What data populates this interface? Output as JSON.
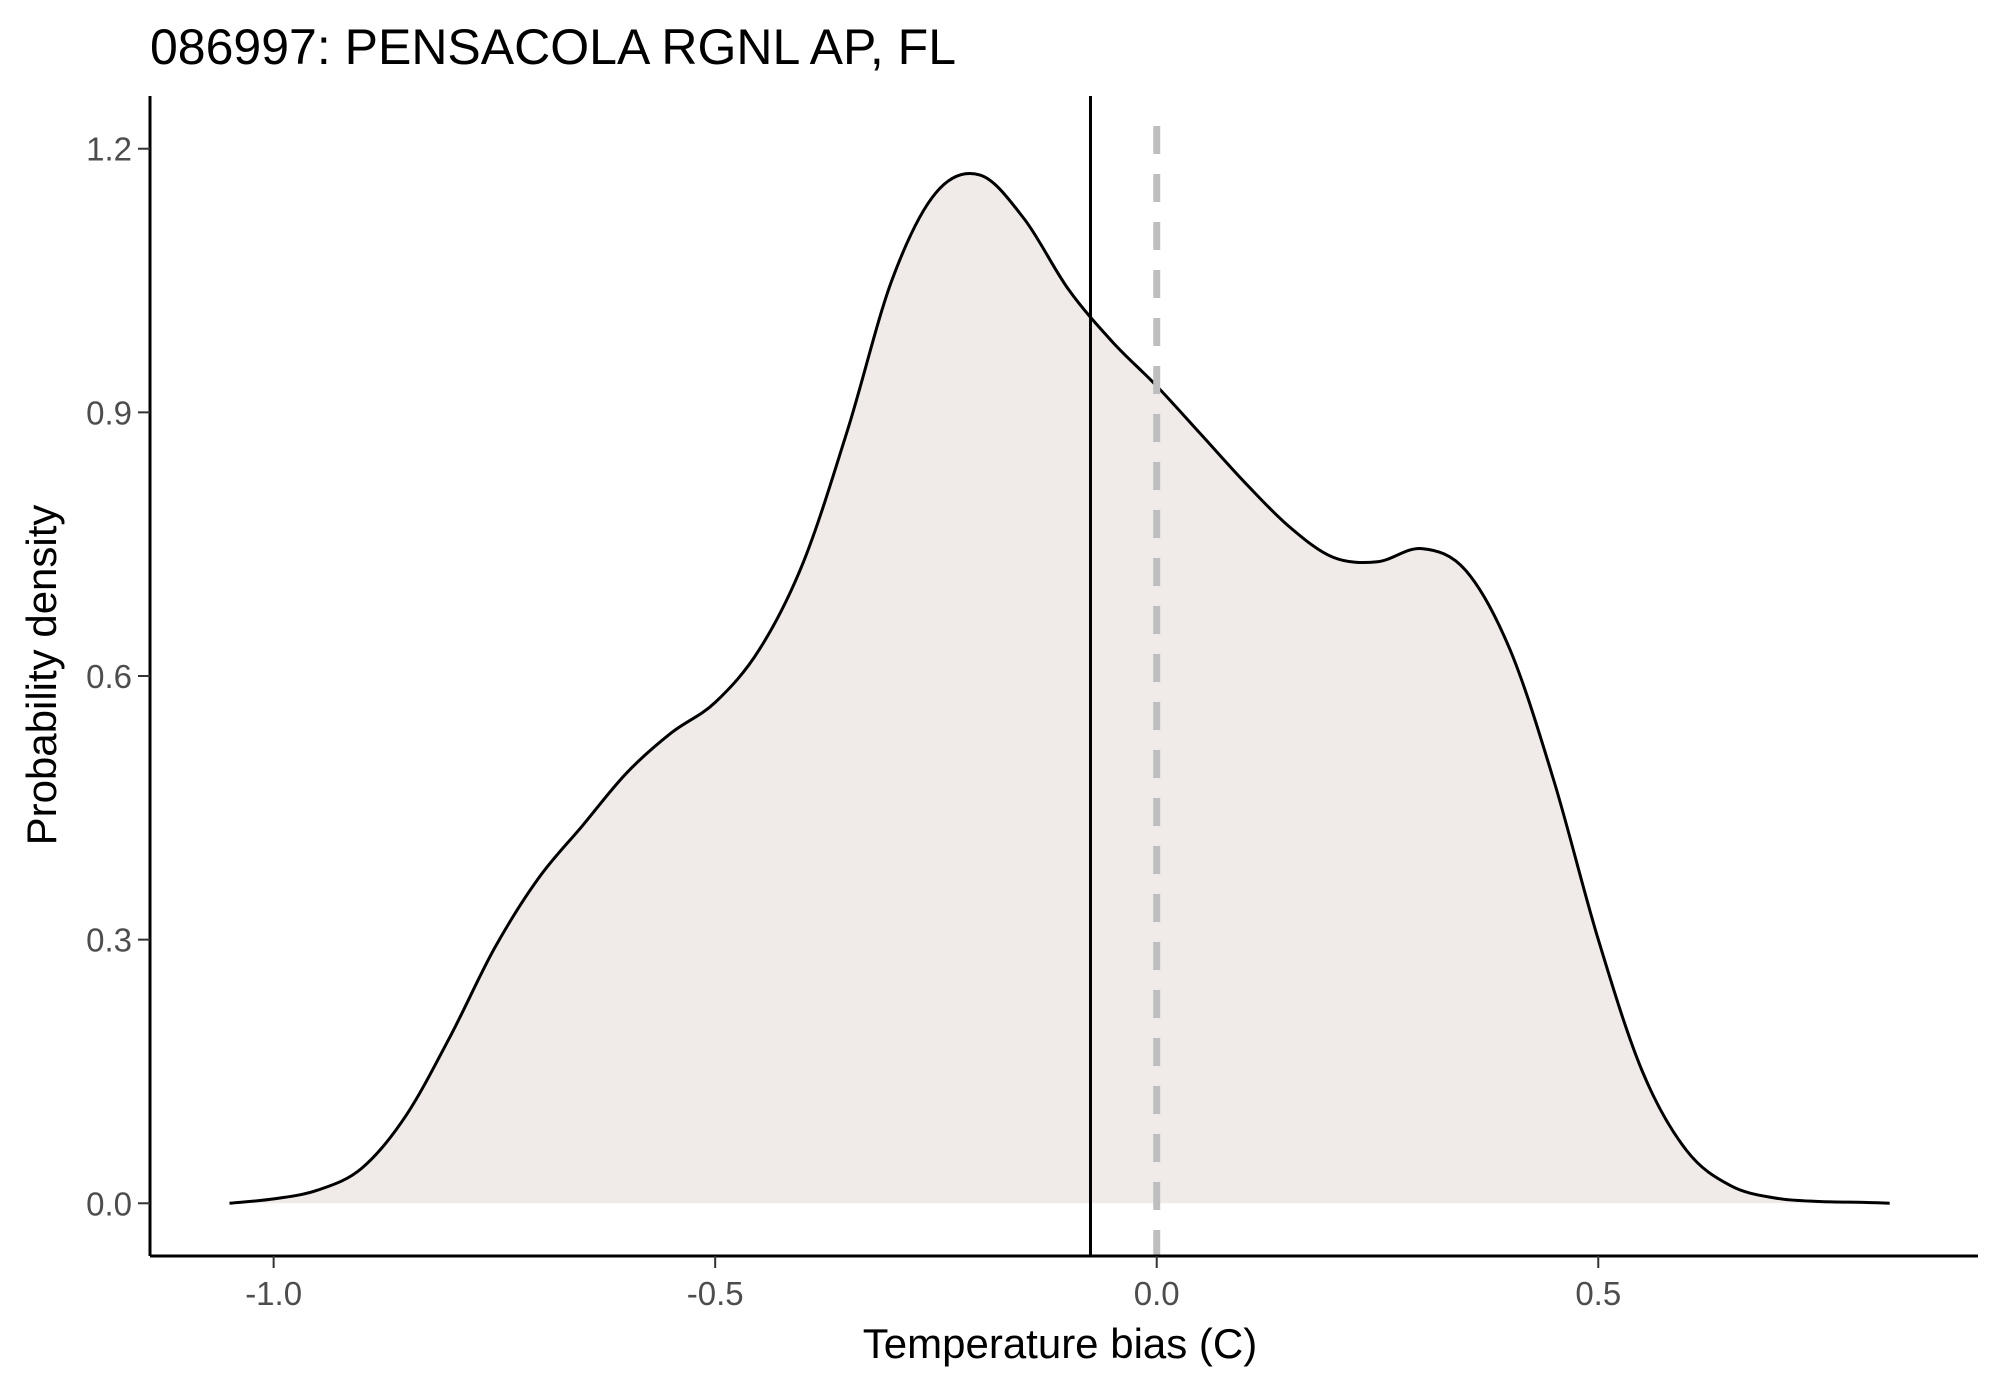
{
  "chart_data": {
    "type": "area",
    "title": "086997: PENSACOLA RGNL AP, FL",
    "xlabel": "Temperature bias (C)",
    "ylabel": "Probability density",
    "xlim": [
      -1.14,
      0.93
    ],
    "ylim": [
      -0.06,
      1.26
    ],
    "x_ticks": [
      "-1.0",
      "-0.5",
      "0.0",
      "0.5"
    ],
    "y_ticks": [
      "0.0",
      "0.3",
      "0.6",
      "0.9",
      "1.2"
    ],
    "grid": false,
    "series": [
      {
        "x": [
          -1.05,
          -1.0,
          -0.95,
          -0.9,
          -0.85,
          -0.8,
          -0.75,
          -0.7,
          -0.65,
          -0.6,
          -0.55,
          -0.5,
          -0.45,
          -0.4,
          -0.35,
          -0.3,
          -0.25,
          -0.2,
          -0.15,
          -0.1,
          -0.05,
          0.0,
          0.05,
          0.1,
          0.15,
          0.2,
          0.25,
          0.3,
          0.35,
          0.4,
          0.45,
          0.5,
          0.55,
          0.6,
          0.65,
          0.7,
          0.75,
          0.8,
          0.83
        ],
        "y": [
          0.0,
          0.005,
          0.015,
          0.04,
          0.1,
          0.19,
          0.29,
          0.37,
          0.43,
          0.49,
          0.535,
          0.57,
          0.63,
          0.73,
          0.88,
          1.05,
          1.15,
          1.17,
          1.12,
          1.04,
          0.98,
          0.93,
          0.875,
          0.82,
          0.77,
          0.735,
          0.73,
          0.745,
          0.72,
          0.63,
          0.48,
          0.3,
          0.15,
          0.06,
          0.02,
          0.006,
          0.002,
          0.001,
          0.0
        ]
      }
    ],
    "vlines": [
      {
        "x": -0.075,
        "style": "solid",
        "color": "#000000"
      },
      {
        "x": 0.0,
        "style": "dashed",
        "color": "#bebebe"
      }
    ],
    "fill_color": "#f0ebe8",
    "line_color": "#000000"
  }
}
